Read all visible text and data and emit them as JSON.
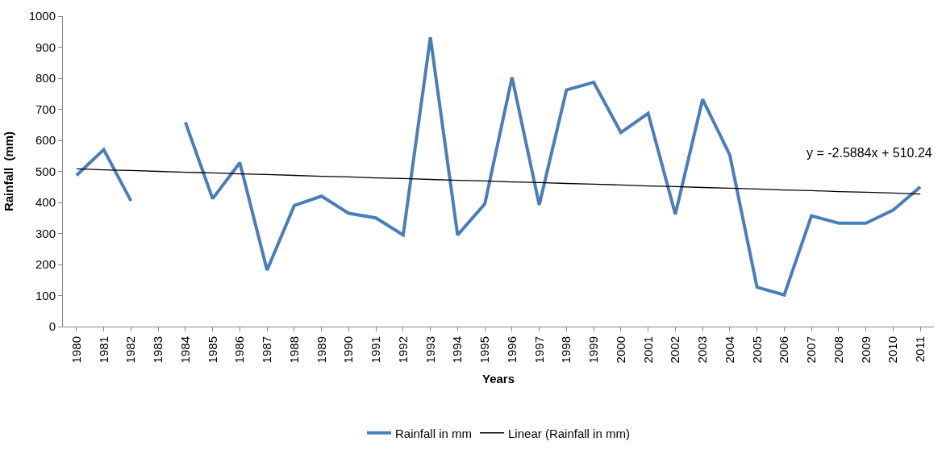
{
  "chart_data": {
    "type": "line",
    "xlabel": "Years",
    "ylabel": "Rainfall  (mm)",
    "categories": [
      "1980",
      "1981",
      "1982",
      "1983",
      "1984",
      "1985",
      "1986",
      "1987",
      "1988",
      "1989",
      "1990",
      "1991",
      "1992",
      "1993",
      "1994",
      "1995",
      "1996",
      "1997",
      "1998",
      "1999",
      "2000",
      "2001",
      "2002",
      "2003",
      "2004",
      "2005",
      "2006",
      "2007",
      "2008",
      "2009",
      "2010",
      "2011"
    ],
    "series": [
      {
        "name": "Rainfall in mm",
        "color": "#4a7ebb",
        "values": [
          487,
          570,
          405,
          null,
          658,
          412,
          528,
          182,
          390,
          420,
          365,
          350,
          295,
          932,
          295,
          395,
          803,
          392,
          762,
          787,
          625,
          687,
          362,
          732,
          553,
          127,
          102,
          357,
          333,
          333,
          375,
          450
        ]
      },
      {
        "name": "Linear (Rainfall in mm)",
        "color": "#000000",
        "values": [
          508,
          505,
          503,
          500,
          497,
          495,
          492,
          490,
          487,
          484,
          482,
          479,
          477,
          474,
          471,
          469,
          466,
          464,
          461,
          459,
          456,
          453,
          451,
          448,
          446,
          443,
          440,
          438,
          435,
          433,
          430,
          427
        ]
      }
    ],
    "annotations": [
      "y = -2.5884x + 510.24"
    ],
    "ylim": [
      0,
      1000
    ],
    "yticks": [
      0,
      100,
      200,
      300,
      400,
      500,
      600,
      700,
      800,
      900,
      1000
    ],
    "legend": "bottom",
    "marker": "none",
    "line_style": "solid"
  }
}
